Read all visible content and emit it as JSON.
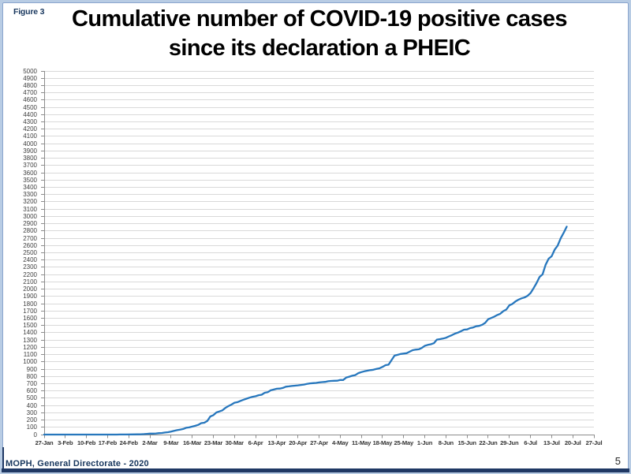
{
  "page": {
    "figure_label": "Figure 3",
    "footer_source": "MOPH, General Directorate  - 2020",
    "page_number": "5"
  },
  "title": {
    "line1": "Cumulative number of COVID-19 positive cases",
    "line2": "since its declaration a PHEIC"
  },
  "colors": {
    "line": "#2777bd",
    "gridline": "#d9d9d9",
    "axis": "#8c8c8c",
    "navy": "#1f3864",
    "frame_outer": "#b8cce4",
    "frame_line": "#8aa5cd"
  },
  "chart_data": {
    "type": "line",
    "title": "Cumulative number of COVID-19 positive cases since its declaration a PHEIC",
    "xlabel": "",
    "ylabel": "",
    "grid": "horizontal",
    "legend": "none",
    "y_axis": {
      "min": 0,
      "max": 5000,
      "tick_step": 100
    },
    "x_axis": {
      "tick_labels": [
        "27-Jan",
        "3-Feb",
        "10-Feb",
        "17-Feb",
        "24-Feb",
        "2-Mar",
        "9-Mar",
        "16-Mar",
        "23-Mar",
        "30-Mar",
        "6-Apr",
        "13-Apr",
        "20-Apr",
        "27-Apr",
        "4-May",
        "11-May",
        "18-May",
        "25-May",
        "1-Jun",
        "8-Jun",
        "15-Jun",
        "22-Jun",
        "29-Jun",
        "6-Jul",
        "13-Jul",
        "20-Jul",
        "27-Jul"
      ],
      "first_day": "27-Jan",
      "last_day": "27-Jul",
      "days_per_tick": 7,
      "total_days": 182,
      "last_data_day": "18-Jul"
    },
    "series": [
      {
        "name": "Cumulative COVID-19 positive cases",
        "points_day_value": [
          [
            0,
            0
          ],
          [
            7,
            0
          ],
          [
            14,
            0
          ],
          [
            21,
            0
          ],
          [
            24,
            0
          ],
          [
            25,
            1
          ],
          [
            27,
            1
          ],
          [
            29,
            2
          ],
          [
            31,
            3
          ],
          [
            32,
            4
          ],
          [
            33,
            7
          ],
          [
            34,
            10
          ],
          [
            35,
            13
          ],
          [
            36,
            13
          ],
          [
            37,
            15
          ],
          [
            38,
            19
          ],
          [
            39,
            22
          ],
          [
            40,
            28
          ],
          [
            41,
            32
          ],
          [
            42,
            41
          ],
          [
            43,
            52
          ],
          [
            44,
            61
          ],
          [
            45,
            68
          ],
          [
            46,
            77
          ],
          [
            47,
            93
          ],
          [
            48,
            99
          ],
          [
            49,
            110
          ],
          [
            50,
            120
          ],
          [
            51,
            133
          ],
          [
            52,
            157
          ],
          [
            53,
            163
          ],
          [
            54,
            187
          ],
          [
            55,
            248
          ],
          [
            56,
            267
          ],
          [
            57,
            304
          ],
          [
            58,
            318
          ],
          [
            59,
            333
          ],
          [
            60,
            368
          ],
          [
            61,
            391
          ],
          [
            62,
            412
          ],
          [
            63,
            438
          ],
          [
            64,
            446
          ],
          [
            65,
            463
          ],
          [
            66,
            479
          ],
          [
            67,
            494
          ],
          [
            68,
            508
          ],
          [
            69,
            520
          ],
          [
            70,
            527
          ],
          [
            71,
            541
          ],
          [
            72,
            548
          ],
          [
            73,
            575
          ],
          [
            74,
            582
          ],
          [
            75,
            609
          ],
          [
            76,
            619
          ],
          [
            77,
            630
          ],
          [
            78,
            632
          ],
          [
            79,
            641
          ],
          [
            80,
            658
          ],
          [
            81,
            663
          ],
          [
            82,
            668
          ],
          [
            83,
            672
          ],
          [
            84,
            677
          ],
          [
            85,
            682
          ],
          [
            86,
            688
          ],
          [
            87,
            696
          ],
          [
            88,
            704
          ],
          [
            89,
            707
          ],
          [
            90,
            710
          ],
          [
            91,
            717
          ],
          [
            92,
            721
          ],
          [
            93,
            725
          ],
          [
            94,
            733
          ],
          [
            95,
            737
          ],
          [
            96,
            740
          ],
          [
            97,
            741
          ],
          [
            98,
            750
          ],
          [
            99,
            750
          ],
          [
            100,
            784
          ],
          [
            101,
            796
          ],
          [
            102,
            809
          ],
          [
            103,
            818
          ],
          [
            104,
            845
          ],
          [
            105,
            859
          ],
          [
            106,
            870
          ],
          [
            107,
            878
          ],
          [
            108,
            886
          ],
          [
            109,
            891
          ],
          [
            110,
            902
          ],
          [
            111,
            911
          ],
          [
            112,
            931
          ],
          [
            113,
            954
          ],
          [
            114,
            961
          ],
          [
            115,
            1024
          ],
          [
            116,
            1086
          ],
          [
            117,
            1097
          ],
          [
            118,
            1109
          ],
          [
            119,
            1114
          ],
          [
            120,
            1119
          ],
          [
            121,
            1140
          ],
          [
            122,
            1161
          ],
          [
            123,
            1168
          ],
          [
            124,
            1172
          ],
          [
            125,
            1191
          ],
          [
            126,
            1220
          ],
          [
            127,
            1233
          ],
          [
            128,
            1242
          ],
          [
            129,
            1256
          ],
          [
            130,
            1306
          ],
          [
            131,
            1312
          ],
          [
            132,
            1320
          ],
          [
            133,
            1331
          ],
          [
            134,
            1350
          ],
          [
            135,
            1368
          ],
          [
            136,
            1388
          ],
          [
            137,
            1402
          ],
          [
            138,
            1422
          ],
          [
            139,
            1442
          ],
          [
            140,
            1446
          ],
          [
            141,
            1464
          ],
          [
            142,
            1473
          ],
          [
            143,
            1489
          ],
          [
            144,
            1495
          ],
          [
            145,
            1510
          ],
          [
            146,
            1536
          ],
          [
            147,
            1587
          ],
          [
            148,
            1603
          ],
          [
            149,
            1622
          ],
          [
            150,
            1644
          ],
          [
            151,
            1662
          ],
          [
            152,
            1697
          ],
          [
            153,
            1719
          ],
          [
            154,
            1778
          ],
          [
            155,
            1796
          ],
          [
            156,
            1830
          ],
          [
            157,
            1855
          ],
          [
            158,
            1873
          ],
          [
            159,
            1885
          ],
          [
            160,
            1907
          ],
          [
            161,
            1946
          ],
          [
            162,
            2011
          ],
          [
            163,
            2082
          ],
          [
            164,
            2168
          ],
          [
            165,
            2203
          ],
          [
            166,
            2334
          ],
          [
            167,
            2419
          ],
          [
            168,
            2452
          ],
          [
            169,
            2542
          ],
          [
            170,
            2599
          ],
          [
            171,
            2700
          ],
          [
            172,
            2775
          ],
          [
            173,
            2859
          ]
        ]
      }
    ]
  }
}
